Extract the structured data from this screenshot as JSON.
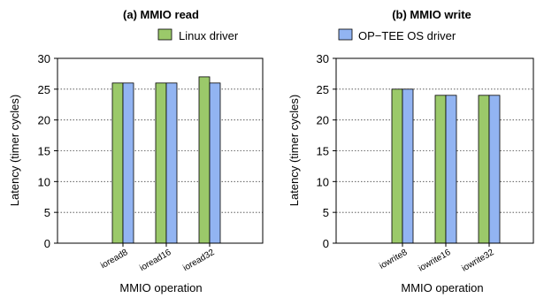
{
  "chart_data": [
    {
      "type": "bar",
      "title": "(a) MMIO read",
      "xlabel": "MMIO operation",
      "ylabel": "Latency (timer cycles)",
      "categories": [
        "ioread8",
        "ioread16",
        "ioread32"
      ],
      "ylim": [
        0,
        30
      ],
      "yticks": [
        0,
        5,
        10,
        15,
        20,
        25,
        30
      ],
      "grid": "horizontal dotted",
      "series": [
        {
          "name": "Linux driver",
          "values": [
            26,
            26,
            27
          ]
        },
        {
          "name": "OP−TEE OS driver",
          "values": [
            26,
            26,
            26
          ]
        }
      ]
    },
    {
      "type": "bar",
      "title": "(b) MMIO write",
      "xlabel": "MMIO operation",
      "ylabel": "Latency (timer cycles)",
      "categories": [
        "iowrite8",
        "iowrite16",
        "iowrite32"
      ],
      "ylim": [
        0,
        30
      ],
      "yticks": [
        0,
        5,
        10,
        15,
        20,
        25,
        30
      ],
      "grid": "horizontal dotted",
      "series": [
        {
          "name": "Linux driver",
          "values": [
            25,
            24,
            24
          ]
        },
        {
          "name": "OP−TEE OS driver",
          "values": [
            25,
            24,
            24
          ]
        }
      ]
    }
  ],
  "legend": [
    {
      "label": "Linux driver",
      "color": "#9bc96a"
    },
    {
      "label": "OP−TEE OS driver",
      "color": "#92b4f2"
    }
  ],
  "colors": {
    "series": [
      "#9bc96a",
      "#92b4f2"
    ],
    "edge": "#000000"
  }
}
